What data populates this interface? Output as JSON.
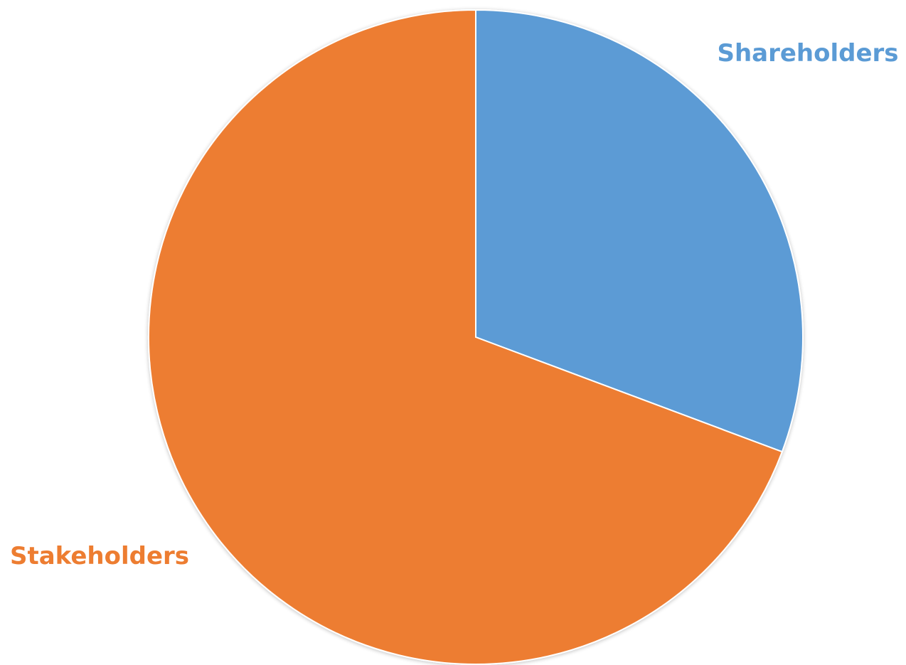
{
  "chart_data": {
    "type": "pie",
    "start_angle": "12 o'clock",
    "direction": "clockwise",
    "slices": [
      {
        "label": "Shareholders",
        "value": 30.7,
        "color": "#5b9bd5"
      },
      {
        "label": "Stakeholders",
        "value": 69.3,
        "color": "#ed7d31"
      }
    ],
    "legend": "none"
  }
}
